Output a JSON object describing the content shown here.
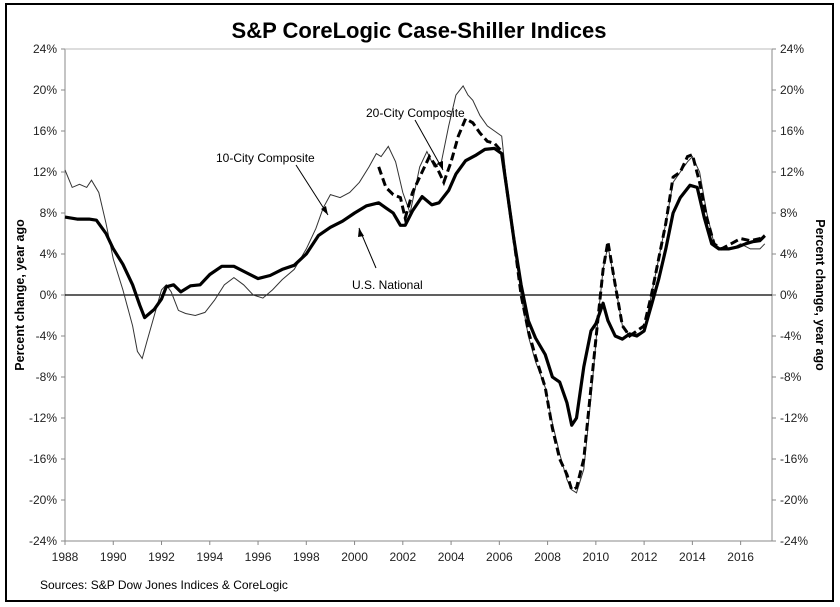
{
  "chart_data": {
    "type": "line",
    "title": "S&P CoreLogic Case-Shiller Indices",
    "ylabel": "Percent change, year ago",
    "ylabel_right": "Percent change, year ago",
    "xlabel": "",
    "ylim": [
      -24,
      24
    ],
    "xlim": [
      1988,
      2017.3
    ],
    "yticks": [
      "24%",
      "20%",
      "16%",
      "12%",
      "8%",
      "4%",
      "0%",
      "-4%",
      "-8%",
      "-12%",
      "-16%",
      "-20%",
      "-24%"
    ],
    "ytick_values": [
      24,
      20,
      16,
      12,
      8,
      4,
      0,
      -4,
      -8,
      -12,
      -16,
      -20,
      -24
    ],
    "xticks": [
      "1988",
      "1990",
      "1992",
      "1994",
      "1996",
      "1998",
      "2000",
      "2002",
      "2004",
      "2006",
      "2008",
      "2010",
      "2012",
      "2014",
      "2016"
    ],
    "xtick_values": [
      1988,
      1990,
      1992,
      1994,
      1996,
      1998,
      2000,
      2002,
      2004,
      2006,
      2008,
      2010,
      2012,
      2014,
      2016
    ],
    "grid": false,
    "zero_line": true,
    "source": "Sources:  S&P Dow Jones Indices & CoreLogic",
    "annotations": [
      {
        "text": "20-City Composite",
        "series": "20-City Composite"
      },
      {
        "text": "10-City Composite",
        "series": "10-City Composite"
      },
      {
        "text": "U.S. National",
        "series": "U.S. National"
      }
    ],
    "series": [
      {
        "name": "U.S. National",
        "style": "thick-solid",
        "x": [
          1988.0,
          1988.5,
          1989.0,
          1989.3,
          1989.7,
          1990.0,
          1990.4,
          1990.8,
          1991.1,
          1991.3,
          1991.7,
          1992.0,
          1992.2,
          1992.5,
          1992.8,
          1993.2,
          1993.6,
          1994.0,
          1994.5,
          1995.0,
          1995.5,
          1996.0,
          1996.5,
          1997.0,
          1997.5,
          1998.0,
          1998.5,
          1999.0,
          1999.5,
          2000.0,
          2000.5,
          2001.0,
          2001.3,
          2001.6,
          2001.9,
          2002.1,
          2002.4,
          2002.8,
          2003.2,
          2003.5,
          2003.9,
          2004.2,
          2004.6,
          2005.0,
          2005.4,
          2005.8,
          2006.1,
          2006.3,
          2006.6,
          2006.9,
          2007.2,
          2007.5,
          2007.9,
          2008.2,
          2008.5,
          2008.8,
          2009.0,
          2009.2,
          2009.5,
          2009.8,
          2010.0,
          2010.3,
          2010.5,
          2010.8,
          2011.1,
          2011.4,
          2011.7,
          2012.0,
          2012.3,
          2012.6,
          2012.9,
          2013.2,
          2013.5,
          2013.9,
          2014.2,
          2014.5,
          2014.8,
          2015.1,
          2015.5,
          2015.9,
          2016.2,
          2016.5,
          2016.8,
          2017.0
        ],
        "values": [
          7.6,
          7.4,
          7.4,
          7.3,
          6.0,
          4.5,
          3.0,
          1.0,
          -1.0,
          -2.2,
          -1.4,
          -0.4,
          0.8,
          1.0,
          0.3,
          0.9,
          1.0,
          2.0,
          2.8,
          2.8,
          2.2,
          1.6,
          1.9,
          2.5,
          2.9,
          4.0,
          5.8,
          6.6,
          7.2,
          8.0,
          8.7,
          9.0,
          8.5,
          8.0,
          6.8,
          6.8,
          8.2,
          9.6,
          8.8,
          9.0,
          10.2,
          11.8,
          13.1,
          13.6,
          14.2,
          14.3,
          13.8,
          10.5,
          5.5,
          1.0,
          -2.5,
          -4.2,
          -5.8,
          -8.0,
          -8.5,
          -10.5,
          -12.7,
          -12.0,
          -7.0,
          -3.5,
          -2.8,
          -0.8,
          -2.5,
          -4.0,
          -4.3,
          -3.8,
          -4.0,
          -3.5,
          -1.0,
          1.5,
          4.5,
          8.0,
          9.5,
          10.7,
          10.5,
          7.5,
          5.0,
          4.5,
          4.5,
          4.7,
          5.0,
          5.2,
          5.3,
          5.8
        ]
      },
      {
        "name": "10-City Composite",
        "style": "thin-solid",
        "x": [
          1988.0,
          1988.3,
          1988.6,
          1988.9,
          1989.1,
          1989.4,
          1989.7,
          1990.0,
          1990.4,
          1990.8,
          1991.0,
          1991.2,
          1991.4,
          1991.7,
          1992.0,
          1992.2,
          1992.4,
          1992.7,
          1993.0,
          1993.4,
          1993.8,
          1994.2,
          1994.6,
          1995.0,
          1995.4,
          1995.8,
          1996.2,
          1996.6,
          1997.0,
          1997.5,
          1998.0,
          1998.4,
          1998.7,
          1999.0,
          1999.4,
          1999.8,
          2000.2,
          2000.6,
          2000.9,
          2001.1,
          2001.4,
          2001.7,
          2002.0,
          2002.3,
          2002.7,
          2003.0,
          2003.3,
          2003.6,
          2003.9,
          2004.2,
          2004.5,
          2004.7,
          2004.9,
          2005.2,
          2005.5,
          2005.8,
          2006.1,
          2006.3,
          2006.6,
          2006.9,
          2007.2,
          2007.5,
          2007.9,
          2008.2,
          2008.5,
          2008.8,
          2009.0,
          2009.2,
          2009.5,
          2009.8,
          2010.1,
          2010.3,
          2010.5,
          2010.8,
          2011.1,
          2011.4,
          2011.7,
          2012.0,
          2012.3,
          2012.6,
          2012.9,
          2013.2,
          2013.5,
          2013.8,
          2014.0,
          2014.3,
          2014.6,
          2014.9,
          2015.2,
          2015.6,
          2016.0,
          2016.4,
          2016.8,
          2017.0
        ],
        "values": [
          12.2,
          10.5,
          10.8,
          10.5,
          11.2,
          10.0,
          7.0,
          3.5,
          0.5,
          -3.0,
          -5.5,
          -6.2,
          -4.5,
          -2.0,
          0.5,
          1.0,
          0.3,
          -1.5,
          -1.8,
          -2.0,
          -1.7,
          -0.5,
          1.0,
          1.7,
          1.0,
          0.0,
          -0.3,
          0.5,
          1.5,
          2.5,
          4.5,
          6.5,
          8.5,
          9.8,
          9.5,
          10.0,
          11.0,
          12.5,
          13.8,
          13.5,
          14.5,
          13.0,
          10.0,
          8.0,
          12.5,
          14.0,
          12.5,
          13.0,
          16.5,
          19.5,
          20.4,
          19.5,
          19.0,
          17.5,
          16.5,
          16.0,
          15.5,
          11.0,
          5.5,
          0.0,
          -4.0,
          -6.5,
          -9.0,
          -12.5,
          -15.5,
          -18.0,
          -19.0,
          -19.3,
          -17.0,
          -10.0,
          -2.0,
          2.5,
          4.8,
          1.0,
          -3.0,
          -4.0,
          -3.8,
          -3.5,
          0.0,
          3.5,
          7.0,
          11.0,
          12.0,
          13.0,
          13.5,
          12.0,
          8.0,
          5.0,
          4.5,
          4.5,
          5.0,
          4.5,
          4.5,
          5.0
        ]
      },
      {
        "name": "20-City Composite",
        "style": "thick-dashed",
        "x": [
          2001.0,
          2001.3,
          2001.6,
          2001.9,
          2002.1,
          2002.4,
          2002.8,
          2003.1,
          2003.4,
          2003.7,
          2004.0,
          2004.3,
          2004.6,
          2004.9,
          2005.2,
          2005.5,
          2005.8,
          2006.1,
          2006.3,
          2006.6,
          2006.9,
          2007.2,
          2007.5,
          2007.9,
          2008.2,
          2008.5,
          2008.8,
          2009.0,
          2009.2,
          2009.5,
          2009.8,
          2010.1,
          2010.3,
          2010.5,
          2010.8,
          2011.1,
          2011.4,
          2011.7,
          2012.0,
          2012.3,
          2012.6,
          2012.9,
          2013.2,
          2013.5,
          2013.8,
          2014.0,
          2014.3,
          2014.6,
          2014.9,
          2015.2,
          2015.6,
          2016.0,
          2016.4,
          2016.8,
          2017.0
        ],
        "values": [
          12.5,
          10.5,
          9.8,
          9.5,
          7.5,
          10.0,
          12.0,
          13.5,
          12.5,
          11.0,
          13.0,
          15.5,
          17.2,
          16.8,
          15.8,
          15.0,
          14.8,
          14.0,
          10.5,
          5.5,
          0.0,
          -3.5,
          -6.0,
          -9.0,
          -13.0,
          -16.0,
          -17.5,
          -19.0,
          -18.8,
          -16.0,
          -9.0,
          -2.0,
          2.5,
          5.2,
          1.0,
          -3.0,
          -4.0,
          -3.5,
          -3.0,
          0.0,
          3.5,
          7.0,
          11.5,
          12.0,
          13.5,
          13.7,
          11.0,
          7.5,
          5.0,
          4.5,
          5.0,
          5.5,
          5.3,
          5.5,
          5.8
        ]
      }
    ]
  }
}
